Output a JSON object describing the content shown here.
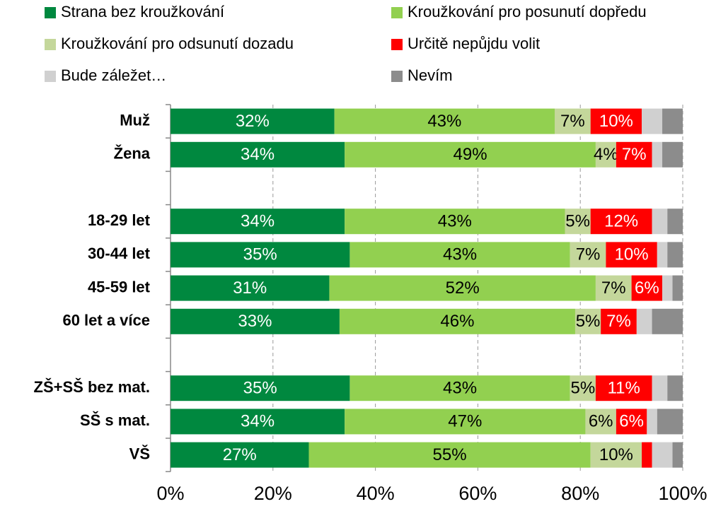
{
  "chart_data": {
    "type": "stacked_bar_horizontal",
    "categories": [
      "Muž",
      "Žena",
      null,
      "18-29 let",
      "30-44 let",
      "45-59 let",
      "60 let a více",
      null,
      "ZŠ+SŠ bez mat.",
      "SŠ s mat.",
      "VŠ"
    ],
    "series": [
      {
        "name": "Strana bez kroužkování",
        "color": "#00883f",
        "label_color": "#ffffff",
        "values": [
          32,
          34,
          null,
          34,
          35,
          31,
          33,
          null,
          35,
          34,
          27
        ],
        "value_labels": [
          "32%",
          "34%",
          null,
          "34%",
          "35%",
          "31%",
          "33%",
          null,
          "35%",
          "34%",
          "27%"
        ]
      },
      {
        "name": "Kroužkování pro posunutí dopředu",
        "color": "#92d050",
        "label_color": "#000000",
        "values": [
          43,
          49,
          null,
          43,
          43,
          52,
          46,
          null,
          43,
          47,
          55
        ],
        "value_labels": [
          "43%",
          "49%",
          null,
          "43%",
          "43%",
          "52%",
          "46%",
          null,
          "43%",
          "47%",
          "55%"
        ]
      },
      {
        "name": "Kroužkování pro odsunutí dozadu",
        "color": "#c4d79b",
        "label_color": "#000000",
        "values": [
          7,
          4,
          null,
          5,
          7,
          7,
          5,
          null,
          5,
          6,
          10
        ],
        "value_labels": [
          "7%",
          "4%",
          null,
          "5%",
          "7%",
          "7%",
          "5%",
          null,
          "5%",
          "6%",
          "10%"
        ]
      },
      {
        "name": "Určitě nepůjdu volit",
        "color": "#ff0000",
        "label_color": "#ffffff",
        "values": [
          10,
          7,
          null,
          12,
          10,
          6,
          7,
          null,
          11,
          6,
          2
        ],
        "value_labels": [
          "10%",
          "7%",
          null,
          "12%",
          "10%",
          "6%",
          "7%",
          null,
          "11%",
          "6%",
          null
        ]
      },
      {
        "name": "Bude záležet…",
        "color": "#d0d0d0",
        "values": [
          4,
          2,
          null,
          3,
          2,
          2,
          3,
          null,
          3,
          2,
          4
        ]
      },
      {
        "name": "Nevím",
        "color": "#8c8c8c",
        "values": [
          4,
          4,
          null,
          3,
          3,
          2,
          6,
          null,
          3,
          5,
          2
        ]
      }
    ],
    "xlim": [
      0,
      100
    ],
    "xticks": [
      {
        "value": 0,
        "label": "0%"
      },
      {
        "value": 20,
        "label": "20%"
      },
      {
        "value": 40,
        "label": "40%"
      },
      {
        "value": 60,
        "label": "60%"
      },
      {
        "value": 80,
        "label": "80%"
      },
      {
        "value": 100,
        "label": "100%"
      }
    ],
    "grid": true
  }
}
